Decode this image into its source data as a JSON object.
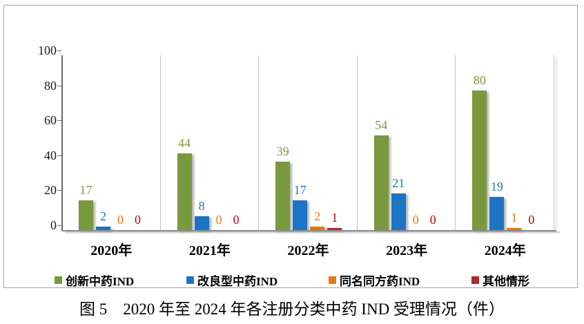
{
  "figure": {
    "caption": "图 5　2020 年至 2024 年各注册分类中药 IND 受理情况（件）"
  },
  "chart_data": {
    "type": "bar",
    "title": "图 5　2020 年至 2024 年各注册分类中药 IND 受理情况（件）",
    "categories": [
      "2020年",
      "2021年",
      "2022年",
      "2023年",
      "2024年"
    ],
    "series": [
      {
        "name": "创新中药IND",
        "color": "#78993E",
        "label_color": "#78993E",
        "values": [
          17,
          44,
          39,
          54,
          80
        ]
      },
      {
        "name": "改良型中药IND",
        "color": "#1B75C4",
        "label_color": "#1B75C4",
        "values": [
          2,
          8,
          17,
          21,
          19
        ]
      },
      {
        "name": "同名同方药IND",
        "color": "#E8780D",
        "label_color": "#E8780D",
        "values": [
          0,
          0,
          2,
          0,
          1
        ]
      },
      {
        "name": "其他情形",
        "color": "#B02B2B",
        "label_color": "#C00000",
        "values": [
          0,
          0,
          1,
          0,
          0
        ]
      }
    ],
    "ylabel": "",
    "xlabel": "",
    "ylim": [
      0,
      100
    ],
    "yticks": [
      0,
      20,
      40,
      60,
      80,
      100
    ],
    "grid": "vertical category separators only, no horizontal gridlines",
    "legend_position": "bottom",
    "bar_labels": "value shown above each bar in series color"
  }
}
